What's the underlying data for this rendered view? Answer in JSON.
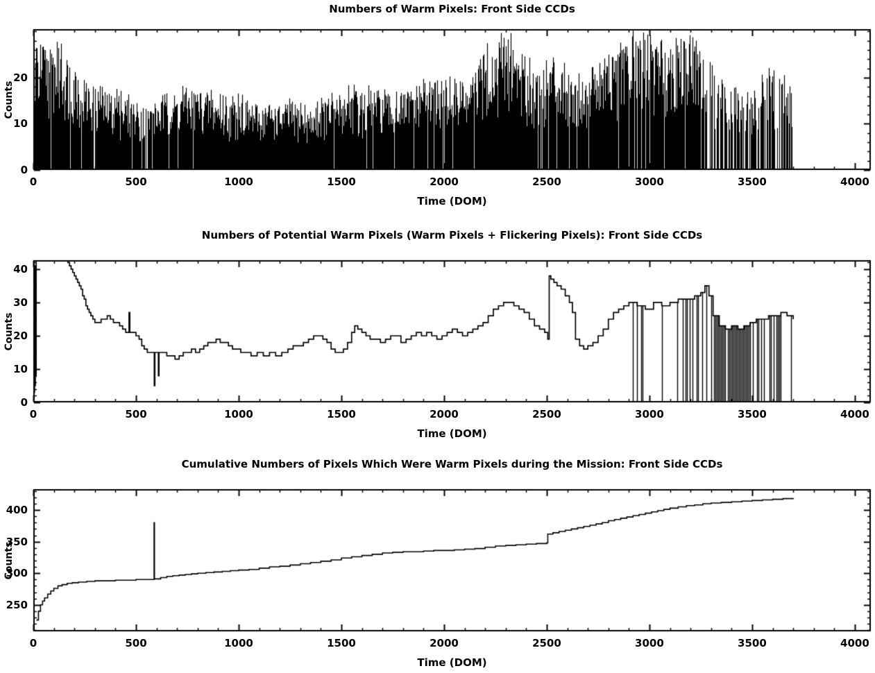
{
  "page": {
    "background": "#ffffff",
    "foreground": "#000000"
  },
  "chart_data": [
    {
      "type": "line",
      "title": "Numbers of Warm Pixels: Front Side CCDs",
      "xlabel": "Time (DOM)",
      "ylabel": "Counts",
      "xlim": [
        0,
        4078
      ],
      "ylim": [
        0,
        30.5
      ],
      "x_end": 3700,
      "grid": "off",
      "legend": "none",
      "xticks": {
        "values": [
          0,
          500,
          1000,
          1500,
          2000,
          2500,
          3000,
          3500,
          4000
        ],
        "labels": [
          "0",
          "500",
          "1000",
          "1500",
          "2000",
          "2500",
          "3000",
          "3500",
          "4000"
        ],
        "minor_step": 100
      },
      "yticks": {
        "values": [
          0,
          10,
          20
        ],
        "labels": [
          "0",
          "10",
          "20"
        ],
        "minor_step": 2
      },
      "style": "dense-noise-spikes",
      "envelope": {
        "x_start": 0,
        "x_step": 50,
        "top": [
          28,
          28,
          27,
          26,
          24,
          20,
          18,
          17,
          17,
          16,
          15,
          14,
          15,
          16,
          17,
          18,
          18,
          17,
          16,
          15,
          16,
          15,
          14,
          15,
          14,
          15,
          14,
          13,
          15,
          16,
          17,
          18,
          17,
          18,
          17,
          16,
          17,
          18,
          19,
          18,
          20,
          19,
          18,
          22,
          26,
          28,
          29,
          28,
          24,
          22,
          24,
          26,
          22,
          20,
          21,
          22,
          24,
          26,
          29,
          29,
          28,
          29,
          29,
          29,
          28,
          26,
          22,
          20,
          19,
          18,
          17,
          20,
          22,
          20,
          18
        ]
      },
      "gap_regions": [
        {
          "x0": 3280,
          "x1": 3700,
          "p": 0.34
        },
        {
          "x0": 480,
          "x1": 660,
          "p": 0.12
        },
        {
          "x0": 0,
          "x1": 3280,
          "p": 0.045
        }
      ]
    },
    {
      "type": "line",
      "title": "Numbers of Potential Warm Pixels (Warm Pixels + Flickering Pixels): Front Side CCDs",
      "xlabel": "Time (DOM)",
      "ylabel": "Counts",
      "xlim": [
        0,
        4078
      ],
      "ylim": [
        0,
        42.7
      ],
      "x_end": 3700,
      "grid": "off",
      "legend": "none",
      "xticks": {
        "values": [
          0,
          500,
          1000,
          1500,
          2000,
          2500,
          3000,
          3500,
          4000
        ],
        "labels": [
          "0",
          "500",
          "1000",
          "1500",
          "2000",
          "2500",
          "3000",
          "3500",
          "4000"
        ],
        "minor_step": 100
      },
      "yticks": {
        "values": [
          0,
          10,
          20,
          30,
          40
        ],
        "labels": [
          "0",
          "10",
          "20",
          "30",
          "40"
        ],
        "minor_step": 2
      },
      "style": "step-line-with-dropouts",
      "series": [
        [
          0,
          0
        ],
        [
          2,
          42
        ],
        [
          4,
          3
        ],
        [
          6,
          40
        ],
        [
          8,
          5
        ],
        [
          10,
          41
        ],
        [
          12,
          8
        ],
        [
          14,
          44
        ],
        [
          160,
          44
        ],
        [
          168,
          42
        ],
        [
          176,
          41
        ],
        [
          184,
          40
        ],
        [
          192,
          39
        ],
        [
          200,
          38
        ],
        [
          208,
          37
        ],
        [
          216,
          36
        ],
        [
          224,
          35
        ],
        [
          232,
          34
        ],
        [
          240,
          32
        ],
        [
          248,
          31
        ],
        [
          256,
          29
        ],
        [
          264,
          28
        ],
        [
          272,
          27
        ],
        [
          280,
          26
        ],
        [
          290,
          25
        ],
        [
          300,
          24
        ],
        [
          315,
          24
        ],
        [
          330,
          25
        ],
        [
          345,
          25
        ],
        [
          360,
          26
        ],
        [
          375,
          25
        ],
        [
          390,
          24
        ],
        [
          405,
          24
        ],
        [
          420,
          23
        ],
        [
          435,
          22
        ],
        [
          450,
          21
        ],
        [
          462,
          21
        ],
        [
          466,
          27
        ],
        [
          470,
          21
        ],
        [
          485,
          21
        ],
        [
          500,
          20
        ],
        [
          515,
          19
        ],
        [
          528,
          17
        ],
        [
          540,
          16
        ],
        [
          555,
          15
        ],
        [
          570,
          15
        ],
        [
          586,
          15
        ],
        [
          589,
          5
        ],
        [
          592,
          15
        ],
        [
          605,
          15
        ],
        [
          609,
          8
        ],
        [
          612,
          15
        ],
        [
          630,
          15
        ],
        [
          650,
          14
        ],
        [
          670,
          14
        ],
        [
          690,
          13
        ],
        [
          710,
          14
        ],
        [
          730,
          15
        ],
        [
          750,
          15
        ],
        [
          770,
          16
        ],
        [
          790,
          15
        ],
        [
          810,
          16
        ],
        [
          830,
          17
        ],
        [
          850,
          18
        ],
        [
          870,
          18
        ],
        [
          890,
          19
        ],
        [
          910,
          18
        ],
        [
          930,
          18
        ],
        [
          950,
          17
        ],
        [
          970,
          16
        ],
        [
          990,
          16
        ],
        [
          1010,
          15
        ],
        [
          1030,
          15
        ],
        [
          1060,
          14
        ],
        [
          1090,
          15
        ],
        [
          1120,
          14
        ],
        [
          1150,
          15
        ],
        [
          1180,
          14
        ],
        [
          1210,
          15
        ],
        [
          1240,
          16
        ],
        [
          1265,
          17
        ],
        [
          1290,
          17
        ],
        [
          1315,
          18
        ],
        [
          1340,
          19
        ],
        [
          1365,
          20
        ],
        [
          1390,
          20
        ],
        [
          1410,
          19
        ],
        [
          1430,
          18
        ],
        [
          1450,
          16
        ],
        [
          1470,
          15
        ],
        [
          1490,
          15
        ],
        [
          1510,
          16
        ],
        [
          1530,
          18
        ],
        [
          1550,
          21
        ],
        [
          1565,
          23
        ],
        [
          1580,
          22
        ],
        [
          1600,
          21
        ],
        [
          1620,
          20
        ],
        [
          1640,
          19
        ],
        [
          1665,
          19
        ],
        [
          1690,
          18
        ],
        [
          1715,
          19
        ],
        [
          1740,
          20
        ],
        [
          1765,
          20
        ],
        [
          1790,
          18
        ],
        [
          1815,
          19
        ],
        [
          1840,
          20
        ],
        [
          1865,
          21
        ],
        [
          1890,
          20
        ],
        [
          1915,
          21
        ],
        [
          1940,
          20
        ],
        [
          1965,
          19
        ],
        [
          1990,
          20
        ],
        [
          2015,
          21
        ],
        [
          2040,
          22
        ],
        [
          2065,
          21
        ],
        [
          2090,
          20
        ],
        [
          2115,
          21
        ],
        [
          2140,
          22
        ],
        [
          2165,
          23
        ],
        [
          2190,
          24
        ],
        [
          2215,
          26
        ],
        [
          2240,
          28
        ],
        [
          2265,
          29
        ],
        [
          2290,
          30
        ],
        [
          2315,
          30
        ],
        [
          2340,
          29
        ],
        [
          2365,
          28
        ],
        [
          2390,
          27
        ],
        [
          2415,
          25
        ],
        [
          2440,
          23
        ],
        [
          2465,
          22
        ],
        [
          2490,
          21
        ],
        [
          2505,
          19
        ],
        [
          2512,
          38
        ],
        [
          2520,
          37
        ],
        [
          2535,
          36
        ],
        [
          2550,
          35
        ],
        [
          2570,
          34
        ],
        [
          2590,
          32
        ],
        [
          2610,
          30
        ],
        [
          2625,
          27
        ],
        [
          2640,
          19
        ],
        [
          2660,
          17
        ],
        [
          2680,
          16
        ],
        [
          2700,
          17
        ],
        [
          2725,
          18
        ],
        [
          2750,
          20
        ],
        [
          2775,
          22
        ],
        [
          2800,
          25
        ],
        [
          2825,
          27
        ],
        [
          2850,
          28
        ],
        [
          2875,
          29
        ],
        [
          2900,
          30
        ],
        [
          2940,
          29
        ],
        [
          2980,
          28
        ],
        [
          3020,
          30
        ],
        [
          3060,
          29
        ],
        [
          3100,
          30
        ],
        [
          3140,
          31
        ],
        [
          3180,
          31
        ],
        [
          3220,
          32
        ],
        [
          3250,
          33
        ],
        [
          3270,
          35
        ],
        [
          3290,
          32
        ],
        [
          3310,
          26
        ],
        [
          3340,
          23
        ],
        [
          3370,
          22
        ],
        [
          3400,
          23
        ],
        [
          3430,
          22
        ],
        [
          3460,
          23
        ],
        [
          3490,
          24
        ],
        [
          3520,
          25
        ],
        [
          3550,
          25
        ],
        [
          3580,
          26
        ],
        [
          3610,
          26
        ],
        [
          3640,
          27
        ],
        [
          3670,
          26
        ],
        [
          3700,
          25
        ]
      ],
      "dropout_regions": [
        {
          "x0": 2905,
          "x1": 3300,
          "p": 0.22
        },
        {
          "x0": 3300,
          "x1": 3510,
          "p": 0.9
        },
        {
          "x0": 3510,
          "x1": 3650,
          "p": 0.45
        },
        {
          "x0": 3650,
          "x1": 3700,
          "p": 0.12
        }
      ]
    },
    {
      "type": "line",
      "title": "Cumulative Numbers of Pixels Which Were Warm Pixels during the Mission: Front Side CCDs",
      "xlabel": "Time (DOM)",
      "ylabel": "Counts",
      "xlim": [
        0,
        4078
      ],
      "ylim": [
        208,
        433
      ],
      "x_end": 3700,
      "grid": "off",
      "legend": "none",
      "xticks": {
        "values": [
          0,
          500,
          1000,
          1500,
          2000,
          2500,
          3000,
          3500,
          4000
        ],
        "labels": [
          "0",
          "500",
          "1000",
          "1500",
          "2000",
          "2500",
          "3000",
          "3500",
          "4000"
        ],
        "minor_step": 100
      },
      "yticks": {
        "values": [
          250,
          300,
          350,
          400
        ],
        "labels": [
          "250",
          "300",
          "350",
          "400"
        ],
        "minor_step": 10
      },
      "style": "cumulative-step-line",
      "series": [
        [
          15,
          226
        ],
        [
          25,
          240
        ],
        [
          35,
          250
        ],
        [
          45,
          256
        ],
        [
          55,
          261
        ],
        [
          70,
          267
        ],
        [
          85,
          272
        ],
        [
          100,
          276
        ],
        [
          120,
          280
        ],
        [
          140,
          282
        ],
        [
          165,
          284
        ],
        [
          190,
          285
        ],
        [
          220,
          286
        ],
        [
          260,
          287
        ],
        [
          300,
          288
        ],
        [
          350,
          288
        ],
        [
          400,
          289
        ],
        [
          450,
          289
        ],
        [
          500,
          290
        ],
        [
          540,
          290
        ],
        [
          586,
          290
        ],
        [
          588,
          380
        ],
        [
          590,
          291
        ],
        [
          620,
          293
        ],
        [
          650,
          295
        ],
        [
          680,
          296
        ],
        [
          710,
          297
        ],
        [
          740,
          298
        ],
        [
          770,
          299
        ],
        [
          800,
          300
        ],
        [
          840,
          301
        ],
        [
          880,
          302
        ],
        [
          920,
          303
        ],
        [
          960,
          304
        ],
        [
          1000,
          305
        ],
        [
          1050,
          306
        ],
        [
          1100,
          308
        ],
        [
          1150,
          310
        ],
        [
          1200,
          311
        ],
        [
          1250,
          313
        ],
        [
          1300,
          315
        ],
        [
          1350,
          317
        ],
        [
          1400,
          319
        ],
        [
          1450,
          321
        ],
        [
          1500,
          324
        ],
        [
          1550,
          326
        ],
        [
          1600,
          328
        ],
        [
          1650,
          330
        ],
        [
          1700,
          332
        ],
        [
          1750,
          333
        ],
        [
          1800,
          334
        ],
        [
          1850,
          334
        ],
        [
          1900,
          335
        ],
        [
          1950,
          336
        ],
        [
          2000,
          336
        ],
        [
          2050,
          337
        ],
        [
          2100,
          338
        ],
        [
          2150,
          339
        ],
        [
          2200,
          341
        ],
        [
          2250,
          343
        ],
        [
          2300,
          344
        ],
        [
          2350,
          345
        ],
        [
          2400,
          346
        ],
        [
          2450,
          347
        ],
        [
          2500,
          348
        ],
        [
          2505,
          362
        ],
        [
          2530,
          364
        ],
        [
          2560,
          366
        ],
        [
          2590,
          368
        ],
        [
          2620,
          370
        ],
        [
          2650,
          372
        ],
        [
          2680,
          374
        ],
        [
          2710,
          376
        ],
        [
          2740,
          378
        ],
        [
          2770,
          380
        ],
        [
          2800,
          383
        ],
        [
          2830,
          385
        ],
        [
          2860,
          387
        ],
        [
          2890,
          389
        ],
        [
          2920,
          391
        ],
        [
          2950,
          393
        ],
        [
          2980,
          395
        ],
        [
          3010,
          397
        ],
        [
          3040,
          399
        ],
        [
          3070,
          401
        ],
        [
          3100,
          403
        ],
        [
          3140,
          405
        ],
        [
          3180,
          407
        ],
        [
          3220,
          408
        ],
        [
          3260,
          410
        ],
        [
          3300,
          411
        ],
        [
          3350,
          412
        ],
        [
          3400,
          413
        ],
        [
          3450,
          414
        ],
        [
          3500,
          415
        ],
        [
          3550,
          416
        ],
        [
          3600,
          417
        ],
        [
          3650,
          418
        ],
        [
          3700,
          419
        ]
      ]
    }
  ]
}
